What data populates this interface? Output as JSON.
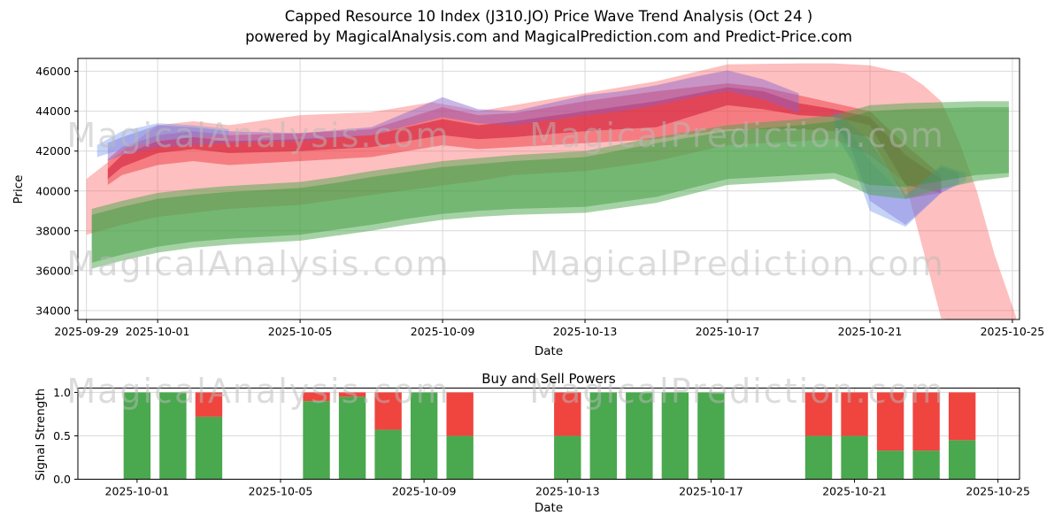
{
  "header": {
    "title": "Capped Resource 10 Index (J310.JO) Price Wave Trend Analysis (Oct 24 )",
    "subtitle": "powered by MagicalAnalysis.com and MagicalPrediction.com and Predict-Price.com"
  },
  "watermark": {
    "left_text": "MagicalAnalysis.com",
    "right_text": "MagicalPrediction.com",
    "color": "#bbbbbb"
  },
  "chart_data": [
    {
      "type": "area",
      "title": "",
      "xlabel": "Date",
      "ylabel": "Price",
      "x_unit": "days_since_2025-09-29",
      "xlim": [
        -0.24,
        26.2
      ],
      "ylim": [
        33550,
        46650
      ],
      "grid": true,
      "xticks": [
        {
          "day": 0,
          "label": "2025-09-29"
        },
        {
          "day": 2,
          "label": "2025-10-01"
        },
        {
          "day": 6,
          "label": "2025-10-05"
        },
        {
          "day": 10,
          "label": "2025-10-09"
        },
        {
          "day": 14,
          "label": "2025-10-13"
        },
        {
          "day": 18,
          "label": "2025-10-17"
        },
        {
          "day": 22,
          "label": "2025-10-21"
        },
        {
          "day": 26,
          "label": "2025-10-25"
        }
      ],
      "yticks": [
        {
          "v": 34000,
          "label": "34000"
        },
        {
          "v": 36000,
          "label": "36000"
        },
        {
          "v": 38000,
          "label": "38000"
        },
        {
          "v": 40000,
          "label": "40000"
        },
        {
          "v": 42000,
          "label": "42000"
        },
        {
          "v": 44000,
          "label": "44000"
        },
        {
          "v": 46000,
          "label": "46000"
        }
      ],
      "bands": [
        {
          "name": "pink-forecast-band",
          "color": "rgba(250,95,95,0.40)",
          "x": [
            0,
            1,
            2,
            3,
            4,
            6,
            8,
            9.7,
            10.5,
            11,
            12,
            14,
            16,
            18,
            20,
            21,
            22,
            23,
            23.5,
            24,
            24.5,
            25,
            25.5,
            26.1
          ],
          "hi": [
            40600,
            42000,
            43300,
            43500,
            43300,
            43800,
            43950,
            44450,
            44200,
            44000,
            44300,
            44900,
            45500,
            46350,
            46400,
            46400,
            46300,
            45900,
            45300,
            44500,
            42500,
            40000,
            36800,
            33700
          ],
          "lo": [
            37800,
            38300,
            38700,
            38900,
            39100,
            39300,
            39800,
            40200,
            40400,
            40500,
            40800,
            41000,
            41500,
            42300,
            42500,
            42600,
            41800,
            40400,
            37000,
            33600,
            33500,
            33500,
            33500,
            33500
          ]
        },
        {
          "name": "red-mid-band",
          "color": "rgba(235,45,55,0.45)",
          "x": [
            0.6,
            1,
            2,
            3,
            4,
            6,
            8,
            10,
            11,
            12,
            14,
            16,
            18,
            19,
            20,
            21,
            22,
            23,
            24
          ],
          "hi": [
            41600,
            42200,
            42800,
            43000,
            42800,
            42900,
            43100,
            44200,
            43800,
            43900,
            44500,
            45000,
            45400,
            45200,
            44800,
            44400,
            44000,
            42300,
            40800
          ],
          "lo": [
            40300,
            40800,
            41300,
            41500,
            41300,
            41500,
            41700,
            42300,
            42100,
            42200,
            42400,
            42600,
            43100,
            43100,
            43100,
            43000,
            42700,
            39600,
            39900
          ]
        },
        {
          "name": "red-core-band",
          "color": "rgba(205,15,45,0.50)",
          "x": [
            0.6,
            1,
            2,
            3,
            4,
            6,
            8,
            10,
            11,
            12,
            14,
            16,
            18,
            19,
            20,
            21,
            22,
            23,
            24
          ],
          "hi": [
            41100,
            41800,
            42500,
            42700,
            42500,
            42600,
            42800,
            43600,
            43300,
            43500,
            44000,
            44500,
            45200,
            45000,
            44400,
            44100,
            43700,
            41800,
            40600
          ],
          "lo": [
            40600,
            41200,
            41900,
            42100,
            41900,
            42000,
            42200,
            42800,
            42600,
            42700,
            43000,
            43200,
            44300,
            44100,
            43800,
            43700,
            43300,
            40300,
            39900
          ]
        },
        {
          "name": "violet-band",
          "color": "rgba(135,95,205,0.45)",
          "x": [
            0.6,
            1,
            2,
            3,
            4,
            6,
            8,
            10,
            11,
            12,
            14,
            15,
            16,
            17,
            18,
            19,
            20
          ],
          "hi": [
            42400,
            42700,
            43300,
            43200,
            43000,
            42900,
            43200,
            44700,
            44100,
            44000,
            44800,
            45000,
            45300,
            45700,
            46050,
            45600,
            44900
          ],
          "lo": [
            41500,
            41800,
            42200,
            42300,
            42400,
            42500,
            42800,
            43700,
            43400,
            43300,
            43800,
            44000,
            44300,
            44700,
            45000,
            44600,
            43900
          ]
        },
        {
          "name": "violet-dip-band",
          "color": "rgba(135,95,205,0.40)",
          "x": [
            21,
            21.5,
            22,
            23,
            24,
            24.5
          ],
          "hi": [
            44100,
            43300,
            42500,
            39800,
            41200,
            40900
          ],
          "lo": [
            43400,
            42000,
            39500,
            38300,
            39900,
            40400
          ]
        },
        {
          "name": "blue-start-band",
          "color": "rgba(110,145,235,0.40)",
          "x": [
            0.3,
            1,
            2,
            3,
            4
          ],
          "hi": [
            42300,
            43000,
            43400,
            43300,
            43100
          ],
          "lo": [
            41700,
            42100,
            42500,
            42700,
            42800
          ]
        },
        {
          "name": "blue-dip-band",
          "color": "rgba(110,145,235,0.40)",
          "x": [
            21,
            21.5,
            22,
            23,
            24,
            24.7
          ],
          "hi": [
            43600,
            42800,
            41500,
            39700,
            41300,
            40900
          ],
          "lo": [
            42900,
            41500,
            39000,
            38200,
            39900,
            40500
          ]
        },
        {
          "name": "green-outer-band",
          "color": "rgba(75,165,75,0.50)",
          "x": [
            0.15,
            1,
            2,
            3,
            4,
            5,
            6,
            7,
            8,
            9,
            10,
            11,
            12,
            13,
            14,
            15,
            16,
            17,
            18,
            19,
            20,
            21,
            22,
            23,
            24,
            25,
            25.9
          ],
          "lo": [
            36100,
            36500,
            36900,
            37150,
            37300,
            37400,
            37500,
            37750,
            38000,
            38300,
            38550,
            38700,
            38800,
            38850,
            38900,
            39150,
            39400,
            39850,
            40300,
            40400,
            40500,
            40600,
            39800,
            39600,
            40100,
            40500,
            40700
          ],
          "hi": [
            39100,
            39500,
            39900,
            40100,
            40250,
            40350,
            40450,
            40700,
            41000,
            41250,
            41500,
            41650,
            41800,
            41900,
            42000,
            42350,
            42700,
            43000,
            43300,
            43450,
            43600,
            43800,
            44300,
            44400,
            44450,
            44500,
            44500
          ]
        },
        {
          "name": "green-inner-band",
          "color": "rgba(55,150,55,0.45)",
          "x": [
            0.15,
            1,
            2,
            3,
            4,
            5,
            6,
            7,
            8,
            9,
            10,
            11,
            12,
            13,
            14,
            15,
            16,
            17,
            18,
            19,
            20,
            21,
            22,
            23,
            24,
            25,
            25.9
          ],
          "lo": [
            36400,
            36800,
            37200,
            37450,
            37600,
            37700,
            37800,
            38050,
            38300,
            38600,
            38850,
            39000,
            39100,
            39150,
            39200,
            39450,
            39700,
            40150,
            40600,
            40700,
            40800,
            40900,
            40300,
            40200,
            40500,
            40800,
            40900
          ],
          "hi": [
            38800,
            39200,
            39600,
            39800,
            39950,
            40050,
            40150,
            40400,
            40700,
            40950,
            41200,
            41350,
            41500,
            41600,
            41700,
            42050,
            42400,
            42700,
            43000,
            43150,
            43300,
            43500,
            44000,
            44100,
            44150,
            44200,
            44200
          ]
        }
      ]
    },
    {
      "type": "bar",
      "stacked": true,
      "title": "Buy and Sell Powers",
      "xlabel": "Date",
      "ylabel": "Signal Strength",
      "x_unit": "days_since_2025-09-29",
      "xlim": [
        0.35,
        26.6
      ],
      "ylim": [
        0,
        1.05
      ],
      "grid": true,
      "bar_width_days": 0.75,
      "categories": [
        "2025-10-01",
        "2025-10-02",
        "2025-10-03",
        "2025-10-06",
        "2025-10-07",
        "2025-10-08",
        "2025-10-09",
        "2025-10-10",
        "2025-10-13",
        "2025-10-14",
        "2025-10-15",
        "2025-10-16",
        "2025-10-17",
        "2025-10-20",
        "2025-10-21",
        "2025-10-22",
        "2025-10-23",
        "2025-10-24"
      ],
      "days": [
        2,
        3,
        4,
        7,
        8,
        9,
        10,
        11,
        14,
        15,
        16,
        17,
        18,
        21,
        22,
        23,
        24,
        25
      ],
      "series": [
        {
          "name": "Buy Power",
          "color": "#4aa84e",
          "values": [
            1,
            1,
            0.72,
            0.9,
            0.95,
            0.57,
            1,
            0.5,
            0.5,
            1,
            1,
            1,
            1,
            0.5,
            0.5,
            0.33,
            0.33,
            0.45
          ]
        },
        {
          "name": "Sell Power",
          "color": "#f0443e",
          "values": [
            0,
            0,
            0.28,
            0.1,
            0.05,
            0.43,
            0,
            0.5,
            0.5,
            0,
            0,
            0,
            0,
            0.5,
            0.5,
            0.67,
            0.67,
            0.55
          ]
        }
      ],
      "xticks": [
        {
          "day": 2,
          "label": "2025-10-01"
        },
        {
          "day": 6,
          "label": "2025-10-05"
        },
        {
          "day": 10,
          "label": "2025-10-09"
        },
        {
          "day": 14,
          "label": "2025-10-13"
        },
        {
          "day": 18,
          "label": "2025-10-17"
        },
        {
          "day": 22,
          "label": "2025-10-21"
        },
        {
          "day": 26,
          "label": "2025-10-25"
        }
      ],
      "yticks": [
        {
          "v": 0,
          "label": "0.0"
        },
        {
          "v": 0.5,
          "label": "0.5"
        },
        {
          "v": 1,
          "label": "1.0"
        }
      ]
    }
  ]
}
